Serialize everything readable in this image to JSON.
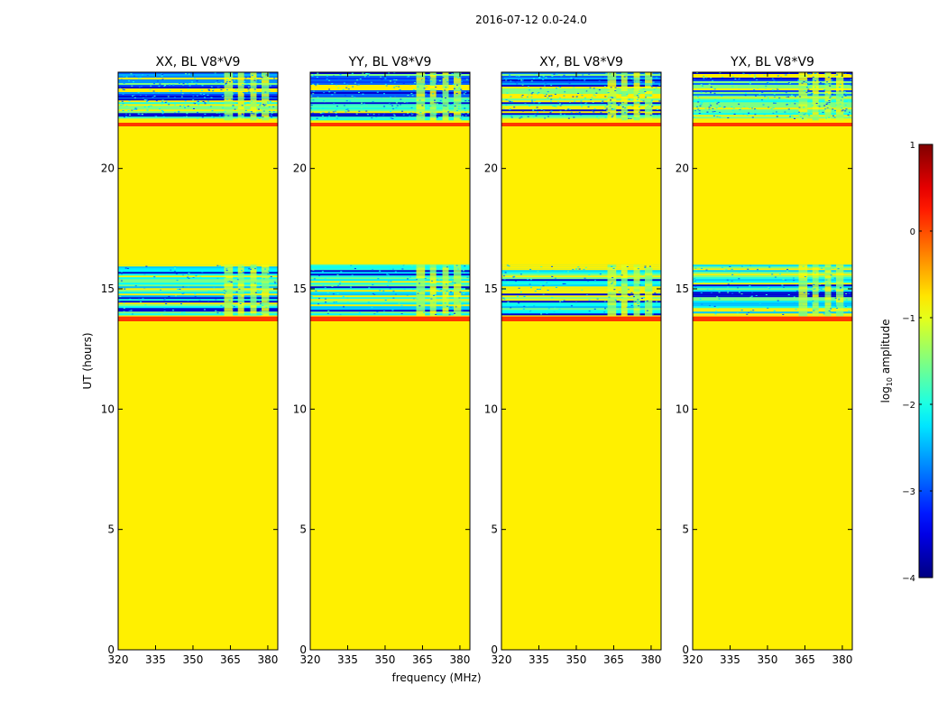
{
  "chart_data": {
    "type": "heatmap",
    "suptitle": "2016-07-12 0.0-24.0",
    "xlabel": "frequency (MHz)",
    "ylabel": "UT (hours)",
    "xlim": [
      320,
      384
    ],
    "ylim": [
      0,
      24
    ],
    "xticks": [
      320,
      335,
      350,
      365,
      380
    ],
    "yticks": [
      0,
      5,
      10,
      15,
      20
    ],
    "xtick_labels": [
      "320",
      "335",
      "350",
      "365",
      "380"
    ],
    "ytick_labels": [
      "0",
      "5",
      "10",
      "15",
      "20"
    ],
    "flagged_value_log10": -0.8,
    "panels": [
      {
        "name": "xx",
        "title": "XX, BL V8*V9"
      },
      {
        "name": "yy",
        "title": "YY, BL V8*V9"
      },
      {
        "name": "xy",
        "title": "XY, BL V8*V9"
      },
      {
        "name": "yx",
        "title": "YX, BL V8*V9"
      }
    ],
    "time_bands": [
      {
        "t0": 23.35,
        "t1": 23.55,
        "kind": "flag-line",
        "value": 0.1
      },
      {
        "t0": 22.9,
        "t1": 24.0,
        "kind": "noisy",
        "value": -2.8
      },
      {
        "t0": 22.05,
        "t1": 22.9,
        "kind": "noisy",
        "value": -1.8
      },
      {
        "t0": 21.75,
        "t1": 21.9,
        "kind": "flag-line",
        "value": 0.1
      },
      {
        "t0": 13.9,
        "t1": 16.0,
        "kind": "noisy",
        "value": -2.2
      },
      {
        "t0": 13.65,
        "t1": 13.85,
        "kind": "flag-line",
        "value": 0.1
      }
    ],
    "rfi_channels_mhz": [
      [
        362.5,
        366.0
      ],
      [
        368.0,
        370.5
      ],
      [
        373.0,
        375.5
      ],
      [
        377.5,
        380.5
      ]
    ],
    "colorbar": {
      "label": "log₁₀ amplitude",
      "label_main": "log",
      "label_sub": "10",
      "label_rest": " amplitude",
      "range": [
        -4,
        1
      ],
      "ticks": [
        1,
        0,
        -1,
        -2,
        -3,
        -4
      ],
      "tick_labels": [
        "1",
        "0",
        "−1",
        "−2",
        "−3",
        "−4"
      ],
      "cmap": "jet"
    }
  }
}
